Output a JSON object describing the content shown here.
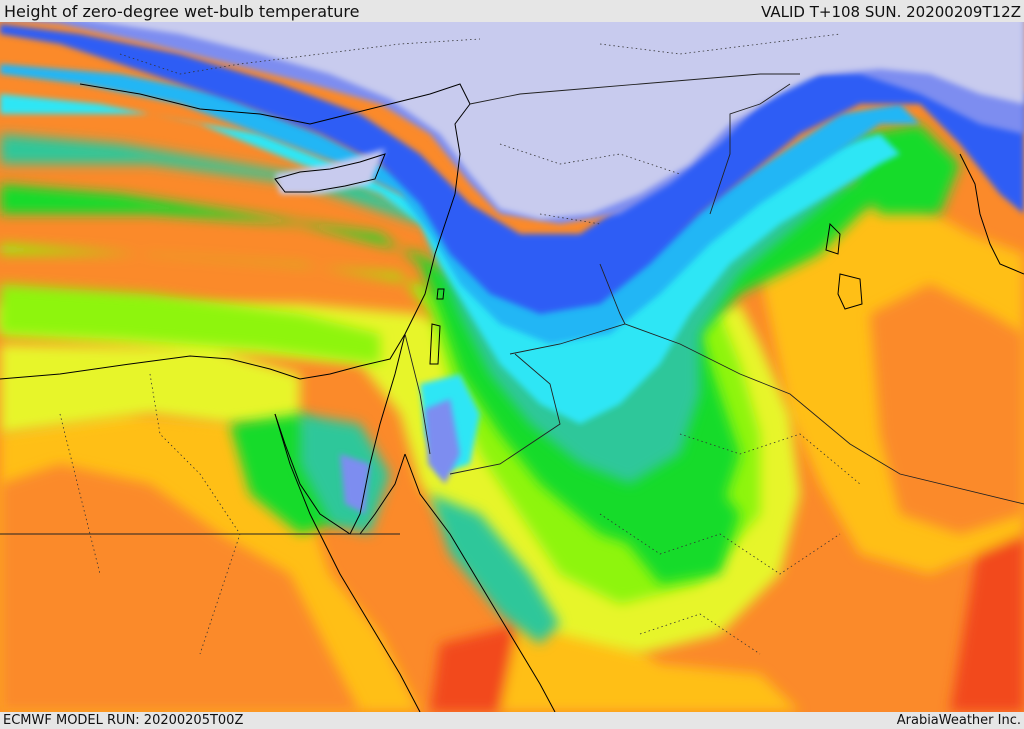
{
  "header": {
    "title": "Height of zero-degree wet-bulb temperature",
    "valid": "VALID T+108 SUN. 20200209T12Z"
  },
  "footer": {
    "model_run": "ECMWF MODEL RUN: 20200205T00Z",
    "credit": "ArabiaWeather Inc."
  },
  "map": {
    "region": "Eastern Mediterranean, Levant, Egypt and northern Arabia",
    "colors": {
      "lowest": "#c8cbee",
      "band_1": "#7d8df0",
      "band_2": "#2f5df5",
      "band_3": "#24b6f5",
      "band_4": "#2ee6f5",
      "band_5": "#2ec79a",
      "band_6": "#13db2c",
      "band_7": "#8ef50b",
      "band_8": "#e7f52b",
      "band_9": "#ffbf14",
      "band_10": "#fb8a2a",
      "highest": "#f24a1e"
    }
  }
}
